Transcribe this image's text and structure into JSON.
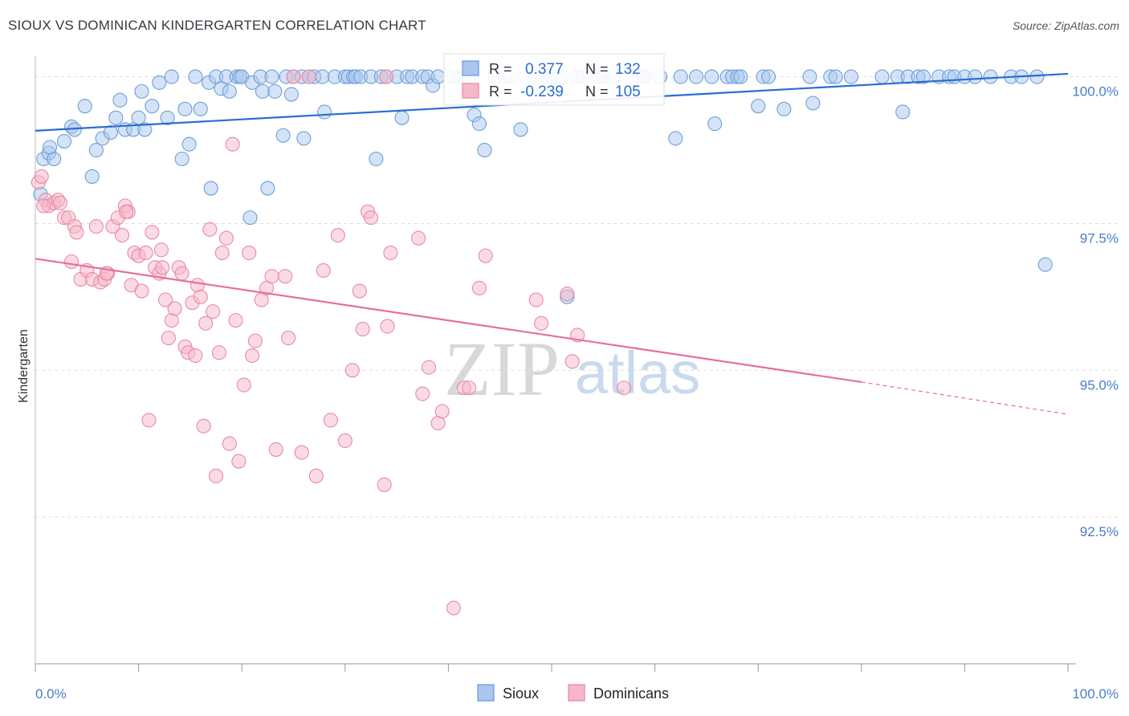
{
  "title": "SIOUX VS DOMINICAN KINDERGARTEN CORRELATION CHART",
  "source": "Source: ZipAtlas.com",
  "chart_data": {
    "type": "scatter",
    "xlabel": "",
    "ylabel": "Kindergarten",
    "xlim": [
      0,
      100
    ],
    "ylim": [
      90.0,
      100.35
    ],
    "x_tick_labels": [
      "0.0%",
      "100.0%"
    ],
    "y_ticks": [
      {
        "value": 100.0,
        "label": "100.0%"
      },
      {
        "value": 97.5,
        "label": "97.5%"
      },
      {
        "value": 95.0,
        "label": "95.0%"
      },
      {
        "value": 92.5,
        "label": "92.5%"
      }
    ],
    "watermark": {
      "zip": "ZIP",
      "atlas": "atlas"
    },
    "stats": [
      {
        "r_label": "R =",
        "r": "0.377",
        "n_label": "N =",
        "n": "132"
      },
      {
        "r_label": "R =",
        "r": "-0.239",
        "n_label": "N =",
        "n": "105"
      }
    ],
    "colors": {
      "sioux_fill": "#a9c7ee",
      "sioux_stroke": "#6f9fd8",
      "sioux_line": "#2a6dd1",
      "dom_fill": "#f6b8c8",
      "dom_stroke": "#e88aa6",
      "dom_line": "#e86f98"
    },
    "series": [
      {
        "name": "Sioux",
        "trend": {
          "x": [
            0,
            100
          ],
          "y": [
            99.08,
            100.05
          ]
        },
        "points": [
          [
            0.5,
            98.0
          ],
          [
            0.8,
            98.6
          ],
          [
            1.3,
            98.7
          ],
          [
            1.8,
            98.6
          ],
          [
            1.4,
            98.8
          ],
          [
            2.8,
            98.9
          ],
          [
            3.5,
            99.15
          ],
          [
            3.8,
            99.1
          ],
          [
            4.8,
            99.5
          ],
          [
            5.5,
            98.3
          ],
          [
            5.9,
            98.75
          ],
          [
            6.5,
            98.95
          ],
          [
            7.3,
            99.05
          ],
          [
            7.8,
            99.3
          ],
          [
            8.2,
            99.6
          ],
          [
            8.7,
            99.1
          ],
          [
            9.5,
            99.1
          ],
          [
            10.0,
            99.3
          ],
          [
            10.3,
            99.75
          ],
          [
            10.6,
            99.1
          ],
          [
            11.3,
            99.5
          ],
          [
            12.0,
            99.9
          ],
          [
            12.8,
            99.3
          ],
          [
            13.2,
            100.0
          ],
          [
            14.2,
            98.6
          ],
          [
            14.5,
            99.45
          ],
          [
            14.9,
            98.85
          ],
          [
            15.5,
            100.0
          ],
          [
            16.0,
            99.45
          ],
          [
            16.8,
            99.9
          ],
          [
            17.5,
            100.0
          ],
          [
            17.0,
            98.1
          ],
          [
            18.0,
            99.8
          ],
          [
            18.5,
            100.0
          ],
          [
            18.8,
            99.75
          ],
          [
            19.5,
            100.0
          ],
          [
            19.8,
            100.0
          ],
          [
            20.0,
            100.0
          ],
          [
            20.8,
            97.6
          ],
          [
            21.0,
            99.9
          ],
          [
            21.8,
            100.0
          ],
          [
            22.0,
            99.75
          ],
          [
            22.5,
            98.1
          ],
          [
            22.9,
            100.0
          ],
          [
            23.2,
            99.75
          ],
          [
            24.0,
            99.0
          ],
          [
            24.3,
            100.0
          ],
          [
            24.8,
            99.7
          ],
          [
            25.0,
            100.0
          ],
          [
            25.8,
            100.0
          ],
          [
            26.0,
            98.95
          ],
          [
            26.5,
            100.0
          ],
          [
            27.0,
            100.0
          ],
          [
            27.8,
            100.0
          ],
          [
            28.0,
            99.4
          ],
          [
            29.0,
            100.0
          ],
          [
            30.0,
            100.0
          ],
          [
            30.3,
            100.0
          ],
          [
            30.8,
            100.0
          ],
          [
            31.0,
            100.0
          ],
          [
            31.5,
            100.0
          ],
          [
            32.5,
            100.0
          ],
          [
            33.0,
            98.6
          ],
          [
            33.5,
            100.0
          ],
          [
            34.0,
            100.0
          ],
          [
            35.0,
            100.0
          ],
          [
            35.5,
            99.3
          ],
          [
            36.0,
            100.0
          ],
          [
            36.5,
            100.0
          ],
          [
            37.5,
            100.0
          ],
          [
            38.0,
            100.0
          ],
          [
            38.5,
            99.85
          ],
          [
            39.0,
            100.0
          ],
          [
            40.5,
            100.0
          ],
          [
            41.0,
            100.0
          ],
          [
            41.5,
            100.0
          ],
          [
            42.5,
            99.35
          ],
          [
            43.0,
            99.2
          ],
          [
            43.5,
            98.75
          ],
          [
            44.5,
            100.0
          ],
          [
            45.5,
            100.0
          ],
          [
            46.0,
            100.0
          ],
          [
            47.0,
            99.1
          ],
          [
            47.5,
            100.0
          ],
          [
            48.5,
            100.0
          ],
          [
            49.5,
            100.0
          ],
          [
            50.0,
            100.0
          ],
          [
            51.0,
            100.0
          ],
          [
            51.5,
            96.25
          ],
          [
            52.5,
            100.0
          ],
          [
            53.0,
            100.0
          ],
          [
            54.5,
            100.0
          ],
          [
            55.0,
            100.0
          ],
          [
            56.0,
            100.0
          ],
          [
            58.5,
            100.0
          ],
          [
            58.8,
            100.0
          ],
          [
            59.0,
            100.0
          ],
          [
            60.5,
            100.0
          ],
          [
            62.0,
            98.95
          ],
          [
            62.5,
            100.0
          ],
          [
            64.0,
            100.0
          ],
          [
            65.5,
            100.0
          ],
          [
            65.8,
            99.2
          ],
          [
            67.0,
            100.0
          ],
          [
            67.5,
            100.0
          ],
          [
            68.0,
            100.0
          ],
          [
            68.3,
            100.0
          ],
          [
            70.0,
            99.5
          ],
          [
            70.5,
            100.0
          ],
          [
            71.0,
            100.0
          ],
          [
            72.5,
            99.45
          ],
          [
            75.0,
            100.0
          ],
          [
            75.3,
            99.55
          ],
          [
            77.0,
            100.0
          ],
          [
            77.5,
            100.0
          ],
          [
            79.0,
            100.0
          ],
          [
            82.0,
            100.0
          ],
          [
            83.5,
            100.0
          ],
          [
            84.0,
            99.4
          ],
          [
            84.5,
            100.0
          ],
          [
            85.5,
            100.0
          ],
          [
            86.0,
            100.0
          ],
          [
            87.5,
            100.0
          ],
          [
            88.5,
            100.0
          ],
          [
            89.0,
            100.0
          ],
          [
            90.0,
            100.0
          ],
          [
            91.0,
            100.0
          ],
          [
            92.5,
            100.0
          ],
          [
            94.5,
            100.0
          ],
          [
            95.5,
            100.0
          ],
          [
            97.0,
            100.0
          ],
          [
            97.8,
            96.8
          ]
        ]
      },
      {
        "name": "Dominicans",
        "trend": {
          "x": [
            0,
            80
          ],
          "y": [
            96.9,
            94.8
          ]
        },
        "trend_dashed": {
          "x": [
            80,
            100
          ],
          "y": [
            94.8,
            94.25
          ]
        },
        "points": [
          [
            0.3,
            98.2
          ],
          [
            0.6,
            98.3
          ],
          [
            1.0,
            97.9
          ],
          [
            1.3,
            97.8
          ],
          [
            1.8,
            97.85
          ],
          [
            2.2,
            97.9
          ],
          [
            2.8,
            97.6
          ],
          [
            3.2,
            97.6
          ],
          [
            3.5,
            96.85
          ],
          [
            3.8,
            97.45
          ],
          [
            4.0,
            97.35
          ],
          [
            4.4,
            96.55
          ],
          [
            5.0,
            96.7
          ],
          [
            5.5,
            96.55
          ],
          [
            5.9,
            97.45
          ],
          [
            6.3,
            96.5
          ],
          [
            6.7,
            96.55
          ],
          [
            7.0,
            96.65
          ],
          [
            7.5,
            97.45
          ],
          [
            8.0,
            97.6
          ],
          [
            8.4,
            97.3
          ],
          [
            8.7,
            97.8
          ],
          [
            9.0,
            97.7
          ],
          [
            9.3,
            96.45
          ],
          [
            9.6,
            97.0
          ],
          [
            10.0,
            96.95
          ],
          [
            10.3,
            96.35
          ],
          [
            10.7,
            97.0
          ],
          [
            11.0,
            94.15
          ],
          [
            11.3,
            97.35
          ],
          [
            11.6,
            96.75
          ],
          [
            12.0,
            96.65
          ],
          [
            12.3,
            96.75
          ],
          [
            12.6,
            96.2
          ],
          [
            12.9,
            95.55
          ],
          [
            13.2,
            95.85
          ],
          [
            13.5,
            96.05
          ],
          [
            13.9,
            96.75
          ],
          [
            14.2,
            96.65
          ],
          [
            14.5,
            95.4
          ],
          [
            14.8,
            95.3
          ],
          [
            15.2,
            96.15
          ],
          [
            15.5,
            95.25
          ],
          [
            15.7,
            96.45
          ],
          [
            16.0,
            96.25
          ],
          [
            16.3,
            94.05
          ],
          [
            16.9,
            97.4
          ],
          [
            17.2,
            96.0
          ],
          [
            17.5,
            93.2
          ],
          [
            17.8,
            95.3
          ],
          [
            18.1,
            97.0
          ],
          [
            18.5,
            97.25
          ],
          [
            18.8,
            93.75
          ],
          [
            19.1,
            98.85
          ],
          [
            19.4,
            95.85
          ],
          [
            19.7,
            93.45
          ],
          [
            20.2,
            94.75
          ],
          [
            20.7,
            97.0
          ],
          [
            21.0,
            95.25
          ],
          [
            21.3,
            95.5
          ],
          [
            21.9,
            96.2
          ],
          [
            22.4,
            96.4
          ],
          [
            22.9,
            96.6
          ],
          [
            23.3,
            93.65
          ],
          [
            24.2,
            96.6
          ],
          [
            24.5,
            95.55
          ],
          [
            25.0,
            100.0
          ],
          [
            25.8,
            93.6
          ],
          [
            26.5,
            100.0
          ],
          [
            27.2,
            93.2
          ],
          [
            27.9,
            96.7
          ],
          [
            28.6,
            94.15
          ],
          [
            29.3,
            97.3
          ],
          [
            30.0,
            93.8
          ],
          [
            30.7,
            95.0
          ],
          [
            31.4,
            96.35
          ],
          [
            31.7,
            95.7
          ],
          [
            32.2,
            97.7
          ],
          [
            32.5,
            97.6
          ],
          [
            33.8,
            93.05
          ],
          [
            34.1,
            95.75
          ],
          [
            34.4,
            97.0
          ],
          [
            37.1,
            97.25
          ],
          [
            37.5,
            94.6
          ],
          [
            38.1,
            95.05
          ],
          [
            39.0,
            94.1
          ],
          [
            39.4,
            94.3
          ],
          [
            40.5,
            90.95
          ],
          [
            41.5,
            94.7
          ],
          [
            42.0,
            94.7
          ],
          [
            43.0,
            96.4
          ],
          [
            43.6,
            96.95
          ],
          [
            48.5,
            96.2
          ],
          [
            49.0,
            95.8
          ],
          [
            51.5,
            96.3
          ],
          [
            52.0,
            95.15
          ],
          [
            52.5,
            95.6
          ],
          [
            57.0,
            94.7
          ],
          [
            34.0,
            100.0
          ],
          [
            16.5,
            95.8
          ],
          [
            12.2,
            97.05
          ],
          [
            8.8,
            97.7
          ],
          [
            6.9,
            96.65
          ],
          [
            2.4,
            97.85
          ],
          [
            0.8,
            97.8
          ]
        ]
      }
    ],
    "legend": [
      "Sioux",
      "Dominicans"
    ]
  }
}
